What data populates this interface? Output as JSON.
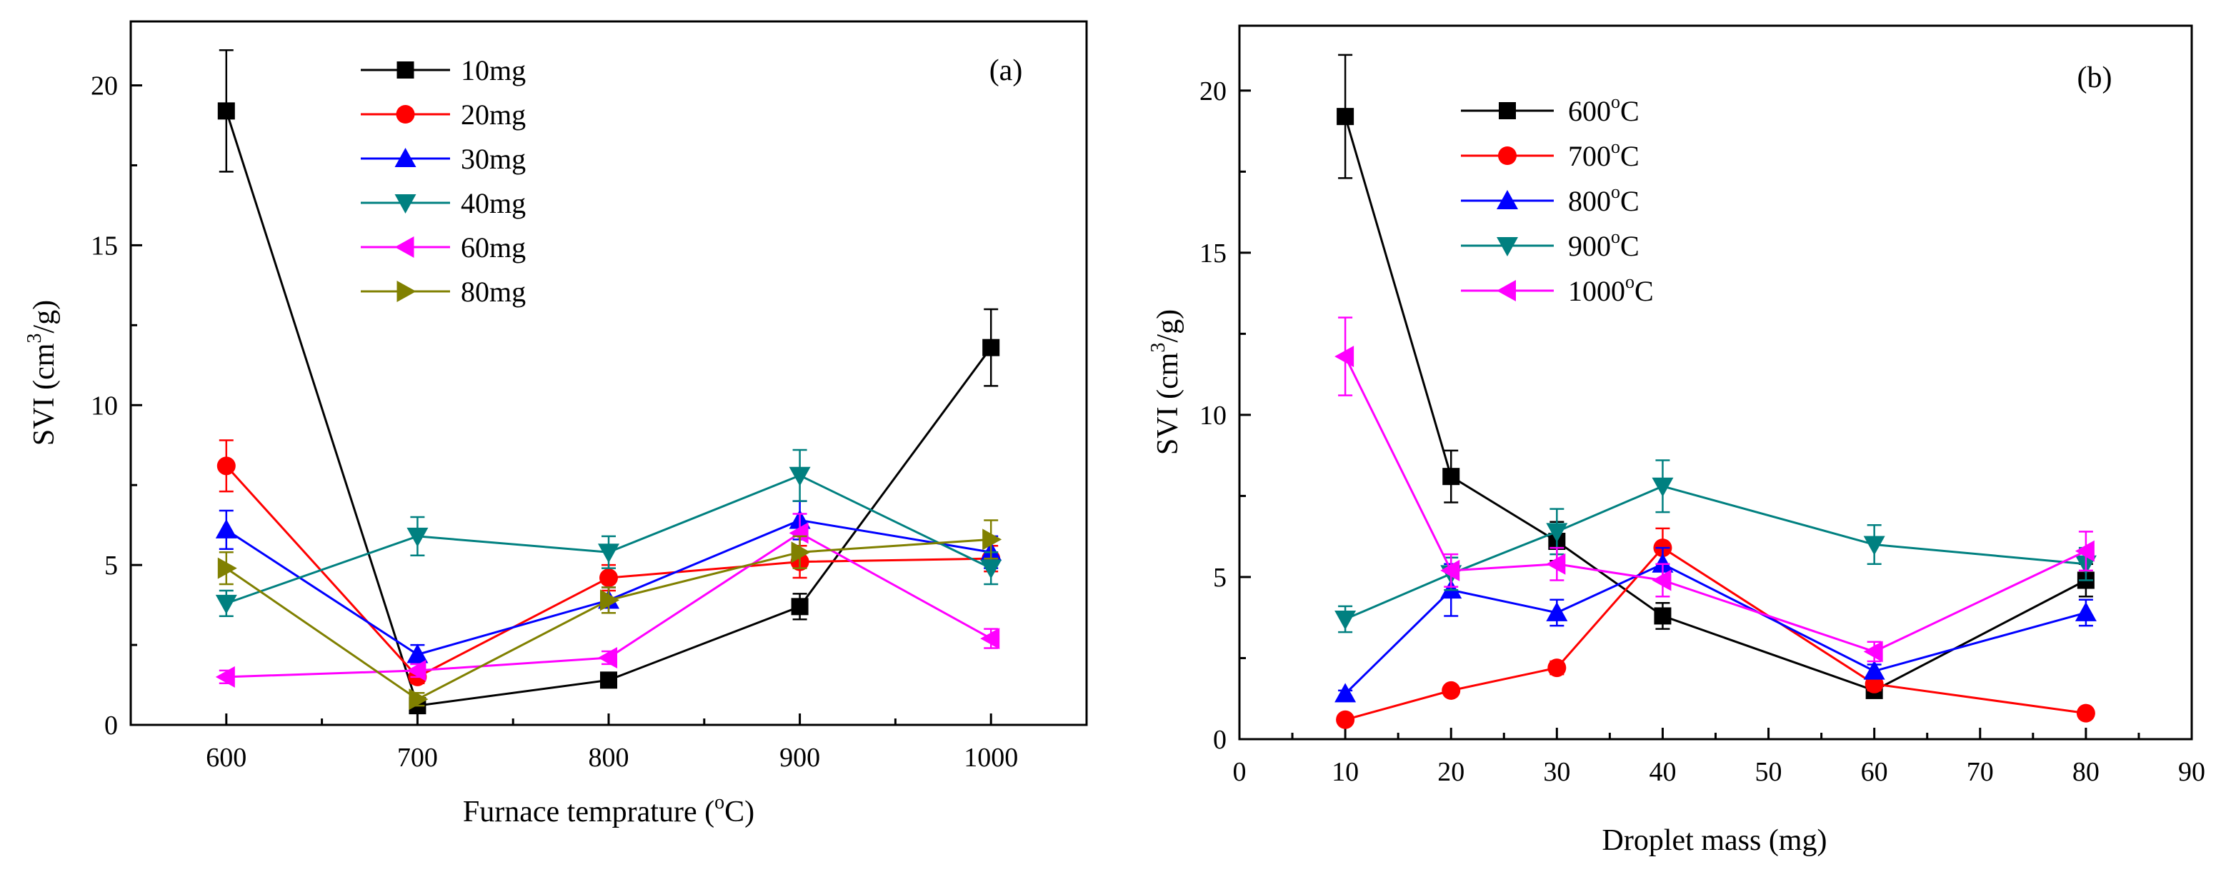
{
  "chart_data": [
    {
      "type": "line",
      "panel_label": "(a)",
      "xlabel": "Furnace temprature (",
      "xlabel_degree": "o",
      "xlabel_unit": "C)",
      "ylabel": "SVI (cm",
      "ylabel_sup": "3",
      "ylabel_unit": "/g)",
      "xlim": [
        550,
        1050
      ],
      "ylim": [
        0,
        22
      ],
      "x_ticks": [
        600,
        700,
        800,
        900,
        1000
      ],
      "x_tick_labels": [
        "600",
        "700",
        "800",
        "900",
        "1000"
      ],
      "y_ticks": [
        0,
        5,
        10,
        15,
        20
      ],
      "y_tick_labels": [
        "0",
        "5",
        "10",
        "15",
        "20"
      ],
      "legend_position": "top-left",
      "x": [
        600,
        700,
        800,
        900,
        1000
      ],
      "series": [
        {
          "name": "10mg",
          "color": "#000000",
          "marker": "square",
          "values": [
            19.2,
            0.6,
            1.4,
            3.7,
            11.8
          ],
          "errors": [
            1.9,
            0.2,
            0.2,
            0.4,
            1.2
          ]
        },
        {
          "name": "20mg",
          "color": "#ff0000",
          "marker": "circle",
          "values": [
            8.1,
            1.5,
            4.6,
            5.1,
            5.2
          ],
          "errors": [
            0.8,
            0.2,
            0.4,
            0.5,
            0.4
          ]
        },
        {
          "name": "30mg",
          "color": "#0000ff",
          "marker": "triangle-up",
          "values": [
            6.1,
            2.2,
            3.9,
            6.4,
            5.4
          ],
          "errors": [
            0.6,
            0.3,
            0.4,
            0.6,
            0.5
          ]
        },
        {
          "name": "40mg",
          "color": "#008080",
          "marker": "triangle-down",
          "values": [
            3.8,
            5.9,
            5.4,
            7.8,
            4.9
          ],
          "errors": [
            0.4,
            0.6,
            0.5,
            0.8,
            0.5
          ]
        },
        {
          "name": "60mg",
          "color": "#ff00ff",
          "marker": "triangle-left",
          "values": [
            1.5,
            1.7,
            2.1,
            6.0,
            2.7
          ],
          "errors": [
            0.2,
            0.2,
            0.2,
            0.6,
            0.3
          ]
        },
        {
          "name": "80mg",
          "color": "#808000",
          "marker": "triangle-right",
          "values": [
            4.9,
            0.8,
            3.9,
            5.4,
            5.8
          ],
          "errors": [
            0.5,
            0.2,
            0.4,
            0.5,
            0.6
          ]
        }
      ]
    },
    {
      "type": "line",
      "panel_label": "(b)",
      "xlabel": "Droplet mass (mg)",
      "ylabel": "SVI (cm",
      "ylabel_sup": "3",
      "ylabel_unit": "/g)",
      "xlim": [
        0,
        90
      ],
      "ylim": [
        0,
        22
      ],
      "x_ticks": [
        0,
        10,
        20,
        30,
        40,
        50,
        60,
        70,
        80,
        90
      ],
      "x_tick_labels": [
        "0",
        "10",
        "20",
        "30",
        "40",
        "50",
        "60",
        "70",
        "80",
        "90"
      ],
      "y_ticks": [
        0,
        5,
        10,
        15,
        20
      ],
      "y_tick_labels": [
        "0",
        "5",
        "10",
        "15",
        "20"
      ],
      "legend_position": "top-left",
      "x": [
        10,
        20,
        30,
        40,
        60,
        80
      ],
      "series": [
        {
          "name": "600",
          "name_degree": "o",
          "name_unit": "C",
          "color": "#000000",
          "marker": "square",
          "values": [
            19.2,
            8.1,
            6.1,
            3.8,
            1.5,
            4.9
          ],
          "errors": [
            1.9,
            0.8,
            0.6,
            0.4,
            0.2,
            0.5
          ]
        },
        {
          "name": "700",
          "name_degree": "o",
          "name_unit": "C",
          "color": "#ff0000",
          "marker": "circle",
          "values": [
            0.6,
            1.5,
            2.2,
            5.9,
            1.7,
            0.8
          ],
          "errors": [
            0.1,
            0.1,
            0.2,
            0.6,
            0.2,
            0.1
          ]
        },
        {
          "name": "800",
          "name_degree": "o",
          "name_unit": "C",
          "color": "#0000ff",
          "marker": "triangle-up",
          "values": [
            1.4,
            4.6,
            3.9,
            5.4,
            2.1,
            3.9
          ],
          "errors": [
            0.1,
            0.8,
            0.4,
            0.5,
            0.2,
            0.4
          ]
        },
        {
          "name": "900",
          "name_degree": "o",
          "name_unit": "C",
          "color": "#008080",
          "marker": "triangle-down",
          "values": [
            3.7,
            5.1,
            6.4,
            7.8,
            6.0,
            5.4
          ],
          "errors": [
            0.4,
            0.5,
            0.7,
            0.8,
            0.6,
            0.5
          ]
        },
        {
          "name": "1000",
          "name_degree": "o",
          "name_unit": "C",
          "color": "#ff00ff",
          "marker": "triangle-left",
          "values": [
            11.8,
            5.2,
            5.4,
            4.9,
            2.7,
            5.8
          ],
          "errors": [
            1.2,
            0.5,
            0.5,
            0.5,
            0.3,
            0.6
          ]
        }
      ]
    }
  ]
}
